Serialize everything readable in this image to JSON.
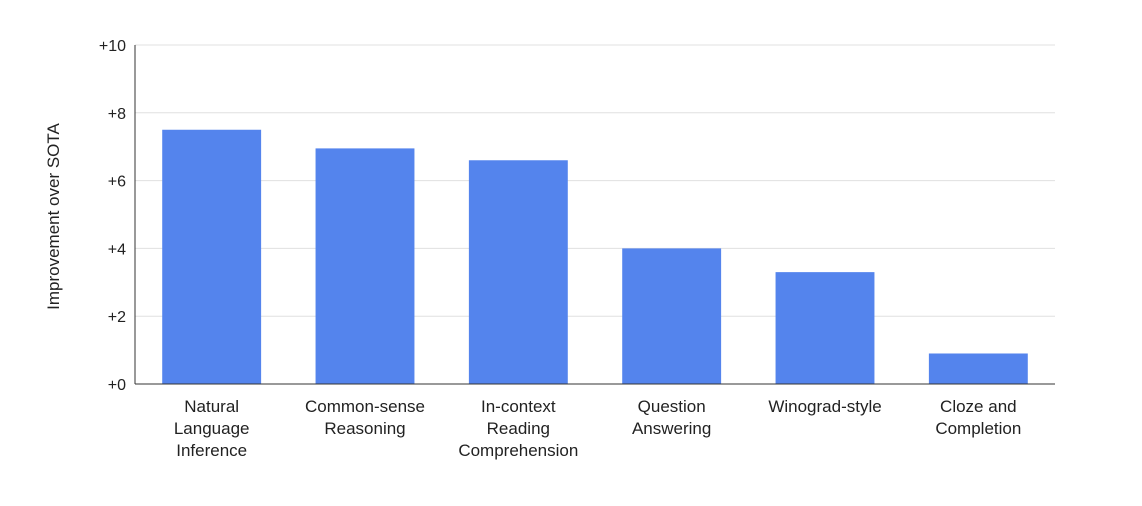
{
  "chart_data": {
    "type": "bar",
    "categories": [
      [
        "Natural",
        "Language",
        "Inference"
      ],
      [
        "Common-sense",
        "Reasoning"
      ],
      [
        "In-context",
        "Reading",
        "Comprehension"
      ],
      [
        "Question",
        "Answering"
      ],
      [
        "Winograd-style"
      ],
      [
        "Cloze and",
        "Completion"
      ]
    ],
    "values": [
      7.5,
      6.95,
      6.6,
      4.0,
      3.3,
      0.9
    ],
    "title": "",
    "xlabel": "",
    "ylabel": "Improvement over SOTA",
    "ylim": [
      0,
      10
    ],
    "yticks": [
      0,
      2,
      4,
      6,
      8,
      10
    ],
    "ytick_labels": [
      "+0",
      "+2",
      "+4",
      "+6",
      "+8",
      "+10"
    ],
    "grid": true,
    "legend": "none",
    "bar_color": "#5484ed"
  }
}
